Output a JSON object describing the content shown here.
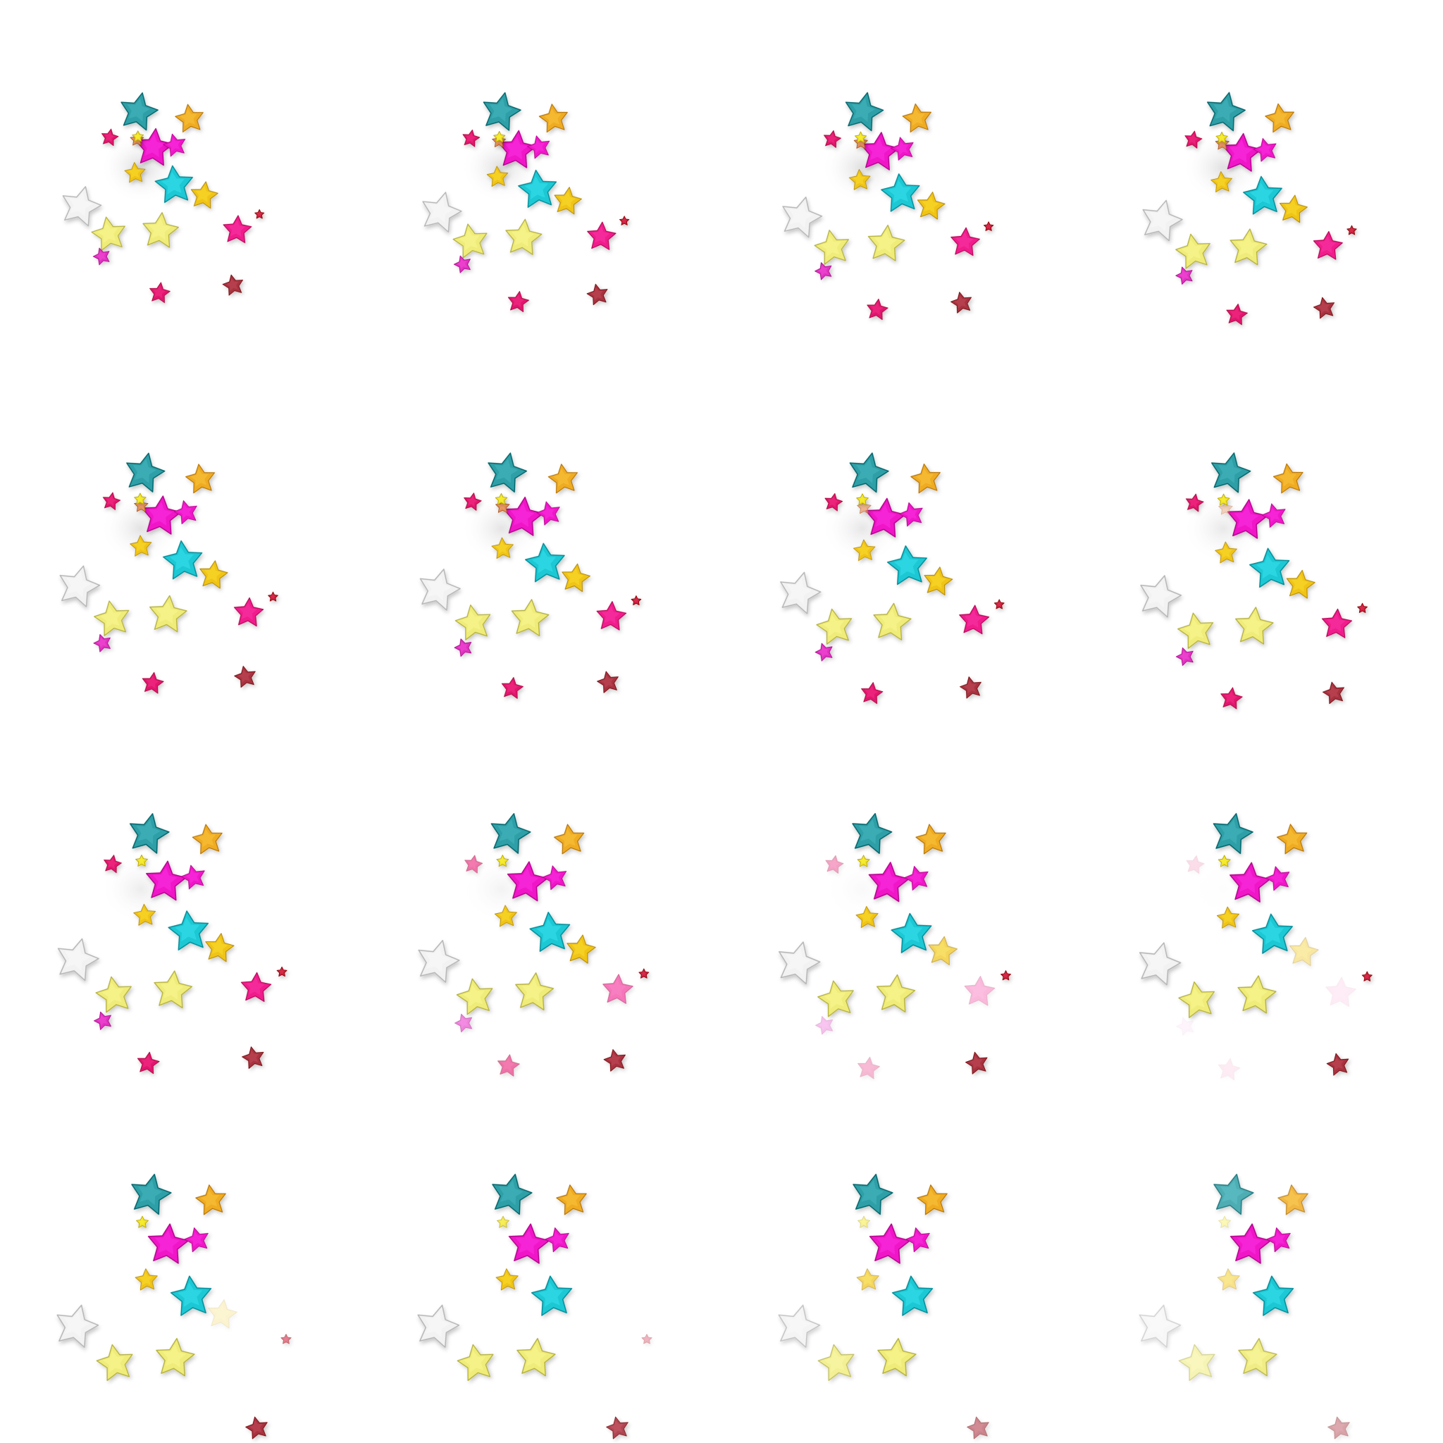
{
  "sprite_sheet": {
    "grid": {
      "rows": 4,
      "cols": 4
    },
    "star_types": [
      {
        "name": "teal-star-large",
        "color": "#2e9fa6",
        "size": 1.0
      },
      {
        "name": "orange-star",
        "color": "#efab22",
        "size": 0.75
      },
      {
        "name": "magenta-star-large",
        "color": "#f018c8",
        "size": 1.0
      },
      {
        "name": "magenta-star-small",
        "color": "#f018c8",
        "size": 0.6
      },
      {
        "name": "crimson-star-small",
        "color": "#e0146e",
        "size": 0.45
      },
      {
        "name": "salmon-star-tiny",
        "color": "#e8905a",
        "size": 0.35
      },
      {
        "name": "cyan-star-large",
        "color": "#1fc8d4",
        "size": 1.0
      },
      {
        "name": "gold-star",
        "color": "#f0c418",
        "size": 0.72
      },
      {
        "name": "gold-star-small",
        "color": "#f0c418",
        "size": 0.55
      },
      {
        "name": "gold-star-tiny",
        "color": "#f0e020",
        "size": 0.3
      },
      {
        "name": "white-star-large",
        "color": "#f2f2f2",
        "size": 1.05
      },
      {
        "name": "pale-yellow-star",
        "color": "#f0ec7a",
        "size": 0.9
      },
      {
        "name": "pale-yellow-star-2",
        "color": "#f0ec7a",
        "size": 0.95
      },
      {
        "name": "pink-star-tiny",
        "color": "#e030c0",
        "size": 0.45
      },
      {
        "name": "hotpink-star",
        "color": "#f01c8c",
        "size": 0.75
      },
      {
        "name": "red-star-tiny",
        "color": "#c81e3c",
        "size": 0.25
      },
      {
        "name": "brown-red-star",
        "color": "#a83040",
        "size": 0.55
      },
      {
        "name": "crimson-star",
        "color": "#e0146e",
        "size": 0.55
      }
    ],
    "frames": [
      {
        "index": 1,
        "spread": 0.55,
        "fade": [
          1,
          1,
          1,
          1,
          1,
          1,
          1,
          1,
          1,
          1,
          1,
          1,
          1,
          1,
          1,
          1,
          1,
          1
        ],
        "glow": 0.9
      },
      {
        "index": 2,
        "spread": 0.62,
        "fade": [
          1,
          1,
          1,
          1,
          1,
          1,
          1,
          1,
          1,
          1,
          1,
          1,
          1,
          1,
          1,
          1,
          1,
          1
        ],
        "glow": 0.85
      },
      {
        "index": 3,
        "spread": 0.68,
        "fade": [
          1,
          1,
          1,
          1,
          1,
          1,
          1,
          1,
          1,
          1,
          1,
          1,
          1,
          1,
          1,
          1,
          1,
          1
        ],
        "glow": 0.8
      },
      {
        "index": 4,
        "spread": 0.72,
        "fade": [
          1,
          1,
          1,
          1,
          1,
          1,
          1,
          1,
          1,
          1,
          1,
          1,
          1,
          1,
          1,
          1,
          1,
          1
        ],
        "glow": 0.75
      },
      {
        "index": 5,
        "spread": 0.78,
        "fade": [
          1,
          1,
          1,
          1,
          1,
          1,
          1,
          1,
          1,
          1,
          1,
          1,
          1,
          1,
          1,
          1,
          1,
          1
        ],
        "glow": 0.7
      },
      {
        "index": 6,
        "spread": 0.82,
        "fade": [
          1,
          1,
          1,
          1,
          1,
          1,
          1,
          1,
          1,
          1,
          1,
          1,
          1,
          1,
          1,
          1,
          1,
          1
        ],
        "glow": 0.65
      },
      {
        "index": 7,
        "spread": 0.86,
        "fade": [
          1,
          1,
          1,
          1,
          1,
          0.7,
          1,
          1,
          1,
          1,
          1,
          1,
          1,
          1,
          1,
          1,
          1,
          1
        ],
        "glow": 0.6
      },
      {
        "index": 8,
        "spread": 0.9,
        "fade": [
          1,
          1,
          1,
          1,
          1,
          0.4,
          1,
          1,
          1,
          1,
          1,
          1,
          1,
          1,
          1,
          1,
          1,
          1
        ],
        "glow": 0.55
      },
      {
        "index": 9,
        "spread": 0.93,
        "fade": [
          1,
          1,
          1,
          1,
          1,
          0,
          1,
          1,
          1,
          1,
          1,
          1,
          1,
          1,
          1,
          1,
          1,
          1
        ],
        "glow": 0.45
      },
      {
        "index": 10,
        "spread": 0.95,
        "fade": [
          1,
          1,
          1,
          1,
          0.6,
          0,
          1,
          1,
          1,
          1,
          1,
          1,
          1,
          0.6,
          0.6,
          1,
          1,
          0.6
        ],
        "glow": 0.3
      },
      {
        "index": 11,
        "spread": 0.97,
        "fade": [
          1,
          1,
          1,
          1,
          0.4,
          0,
          1,
          0.7,
          1,
          1,
          1,
          1,
          1,
          0.3,
          0.3,
          1,
          1,
          0.3
        ],
        "glow": 0.15
      },
      {
        "index": 12,
        "spread": 0.98,
        "fade": [
          1,
          1,
          1,
          1,
          0.15,
          0,
          1,
          0.4,
          1,
          1,
          1,
          1,
          1,
          0.05,
          0.08,
          1,
          1,
          0.08
        ],
        "glow": 0.05
      },
      {
        "index": 13,
        "spread": 1.0,
        "fade": [
          1,
          1,
          1,
          1,
          0,
          0,
          1,
          0.2,
          1,
          1,
          1,
          1,
          1,
          0,
          0,
          0.6,
          1,
          0
        ],
        "glow": 0
      },
      {
        "index": 14,
        "spread": 1.0,
        "fade": [
          1,
          1,
          1,
          1,
          0,
          0,
          1,
          0,
          1,
          0.8,
          1,
          1,
          1,
          0,
          0,
          0.35,
          0.9,
          0
        ],
        "glow": 0
      },
      {
        "index": 15,
        "spread": 1.0,
        "fade": [
          1,
          1,
          1,
          1,
          0,
          0,
          1,
          0,
          0.7,
          0.5,
          0.8,
          0.8,
          1,
          0,
          0,
          0,
          0.6,
          0
        ],
        "glow": 0
      },
      {
        "index": 16,
        "spread": 1.0,
        "fade": [
          0.85,
          0.85,
          1,
          1,
          0,
          0,
          1,
          0,
          0.5,
          0.35,
          0.6,
          0.55,
          0.9,
          0,
          0,
          0,
          0.45,
          0
        ],
        "glow": 0
      }
    ]
  }
}
